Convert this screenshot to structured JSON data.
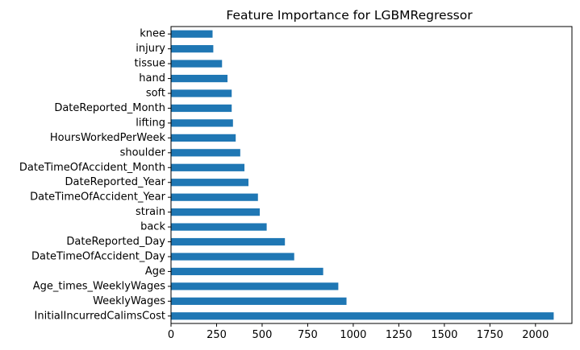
{
  "chart_data": {
    "type": "bar",
    "orientation": "horizontal",
    "title": "Feature Importance for LGBMRegressor",
    "xlabel": "",
    "ylabel": "",
    "categories": [
      "InitialIncurredCalimsCost",
      "WeeklyWages",
      "Age_times_WeeklyWages",
      "Age",
      "DateTimeOfAccident_Day",
      "DateReported_Day",
      "back",
      "strain",
      "DateTimeOfAccident_Year",
      "DateReported_Year",
      "DateTimeOfAccident_Month",
      "shoulder",
      "HoursWorkedPerWeek",
      "lifting",
      "DateReported_Month",
      "soft",
      "hand",
      "tissue",
      "injury",
      "knee"
    ],
    "values": [
      2100,
      963,
      918,
      835,
      676,
      625,
      525,
      487,
      477,
      425,
      403,
      380,
      355,
      340,
      333,
      333,
      310,
      280,
      232,
      228
    ],
    "xlim": [
      0,
      2200
    ],
    "xticks": [
      0,
      250,
      500,
      750,
      1000,
      1250,
      1500,
      1750,
      2000
    ],
    "xtick_labels": [
      "0",
      "250",
      "500",
      "750",
      "1000",
      "1250",
      "1500",
      "1750",
      "2000"
    ],
    "bar_color": "#1f77b4",
    "grid": false,
    "legend": "none"
  }
}
